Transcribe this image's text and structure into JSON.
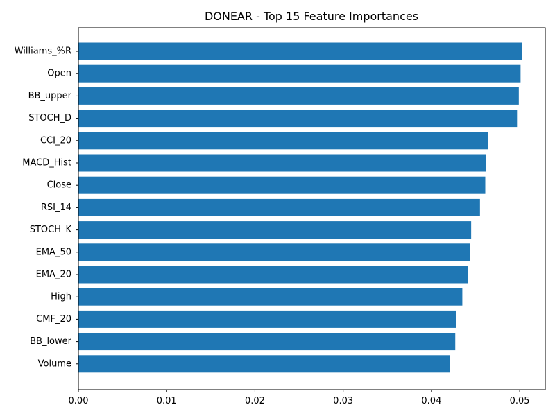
{
  "chart_data": {
    "type": "bar",
    "orientation": "horizontal",
    "title": "DONEAR - Top 15 Feature Importances",
    "xlabel": "",
    "ylabel": "",
    "xlim": [
      0,
      0.0529
    ],
    "xticks": [
      "0.00",
      "0.01",
      "0.02",
      "0.03",
      "0.04",
      "0.05"
    ],
    "xtick_values": [
      0,
      0.01,
      0.02,
      0.03,
      0.04,
      0.05
    ],
    "grid": false,
    "bar_color": "#1f77b4",
    "categories": [
      "Williams_%R",
      "Open",
      "BB_upper",
      "STOCH_D",
      "CCI_20",
      "MACD_Hist",
      "Close",
      "RSI_14",
      "STOCH_K",
      "EMA_50",
      "EMA_20",
      "High",
      "CMF_20",
      "BB_lower",
      "Volume"
    ],
    "values": [
      0.0503,
      0.0501,
      0.0499,
      0.0497,
      0.0464,
      0.0462,
      0.0461,
      0.0455,
      0.0445,
      0.0444,
      0.0441,
      0.0435,
      0.0428,
      0.0427,
      0.0421
    ]
  }
}
